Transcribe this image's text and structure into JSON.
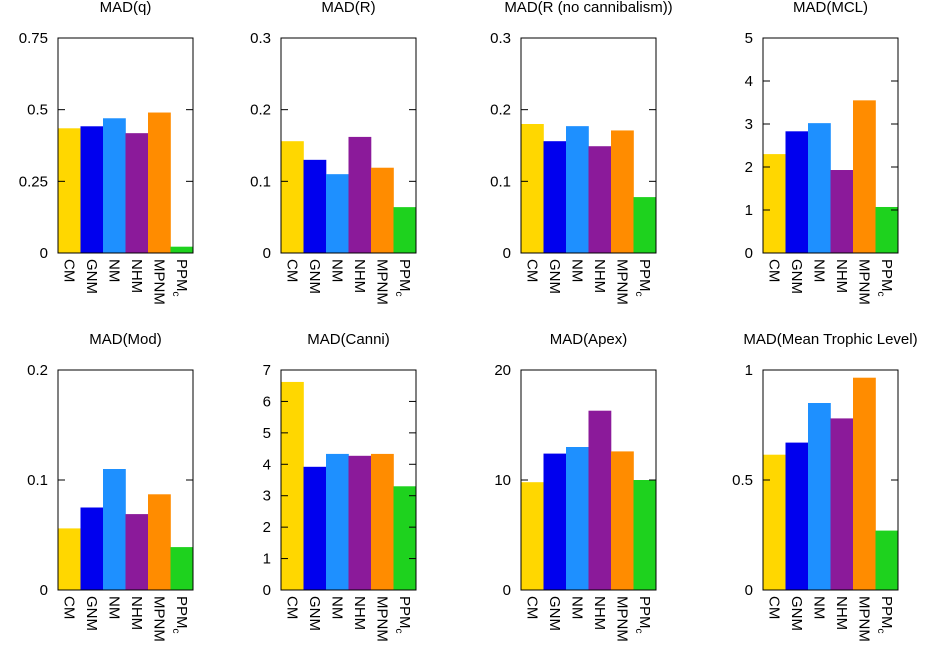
{
  "categories": [
    "CM",
    "GNM",
    "NM",
    "NHM",
    "MPNM",
    "PPMc"
  ],
  "colors": [
    "#FFD700",
    "#0000EE",
    "#1E90FF",
    "#8B1A9A",
    "#FF8C00",
    "#1ED21E"
  ],
  "chart_data": [
    {
      "type": "bar",
      "title": "MAD(q)",
      "ylim": [
        0,
        0.75
      ],
      "yticks": [
        0,
        0.25,
        0.5,
        0.75
      ],
      "ytick_labels": [
        "0",
        "0.25",
        "0.5",
        "0.75"
      ],
      "values": [
        0.435,
        0.442,
        0.47,
        0.418,
        0.49,
        0.022
      ]
    },
    {
      "type": "bar",
      "title": "MAD(R)",
      "ylim": [
        0,
        0.3
      ],
      "yticks": [
        0,
        0.1,
        0.2,
        0.3
      ],
      "ytick_labels": [
        "0",
        "0.1",
        "0.2",
        "0.3"
      ],
      "values": [
        0.156,
        0.13,
        0.11,
        0.162,
        0.119,
        0.064
      ]
    },
    {
      "type": "bar",
      "title": "MAD(R (no cannibalism))",
      "ylim": [
        0,
        0.3
      ],
      "yticks": [
        0,
        0.1,
        0.2,
        0.3
      ],
      "ytick_labels": [
        "0",
        "0.1",
        "0.2",
        "0.3"
      ],
      "values": [
        0.18,
        0.156,
        0.177,
        0.149,
        0.171,
        0.078
      ]
    },
    {
      "type": "bar",
      "title": "MAD(MCL)",
      "ylim": [
        0,
        5
      ],
      "yticks": [
        0,
        1,
        2,
        3,
        4,
        5
      ],
      "ytick_labels": [
        "0",
        "1",
        "2",
        "3",
        "4",
        "5"
      ],
      "values": [
        2.3,
        2.83,
        3.02,
        1.93,
        3.55,
        1.07
      ]
    },
    {
      "type": "bar",
      "title": "MAD(Mod)",
      "ylim": [
        0,
        0.2
      ],
      "yticks": [
        0,
        0.1,
        0.2
      ],
      "ytick_labels": [
        "0",
        "0.1",
        "0.2"
      ],
      "values": [
        0.056,
        0.075,
        0.11,
        0.069,
        0.087,
        0.039
      ]
    },
    {
      "type": "bar",
      "title": "MAD(Canni)",
      "ylim": [
        0,
        7
      ],
      "yticks": [
        0,
        1,
        2,
        3,
        4,
        5,
        6,
        7
      ],
      "ytick_labels": [
        "0",
        "1",
        "2",
        "3",
        "4",
        "5",
        "6",
        "7"
      ],
      "values": [
        6.62,
        3.92,
        4.33,
        4.27,
        4.33,
        3.3
      ]
    },
    {
      "type": "bar",
      "title": "MAD(Apex)",
      "ylim": [
        0,
        20
      ],
      "yticks": [
        0,
        10,
        20
      ],
      "ytick_labels": [
        "0",
        "10",
        "20"
      ],
      "values": [
        9.8,
        12.4,
        13.0,
        16.3,
        12.6,
        10.0
      ]
    },
    {
      "type": "bar",
      "title": "MAD(Mean Trophic Level)",
      "ylim": [
        0,
        1
      ],
      "yticks": [
        0,
        0.5,
        1
      ],
      "ytick_labels": [
        "0",
        "0.5",
        "1"
      ],
      "values": [
        0.615,
        0.67,
        0.85,
        0.78,
        0.965,
        0.27
      ]
    }
  ]
}
